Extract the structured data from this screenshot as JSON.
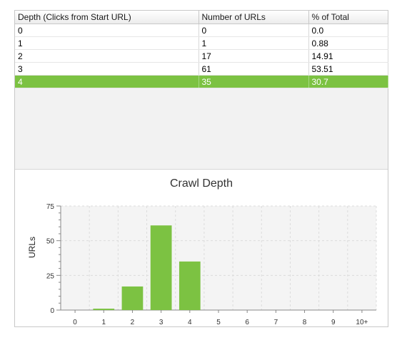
{
  "table": {
    "columns": [
      "Depth (Clicks from Start URL)",
      "Number of URLs",
      "% of Total"
    ],
    "rows": [
      [
        "0",
        "0",
        "0.0"
      ],
      [
        "1",
        "1",
        "0.88"
      ],
      [
        "2",
        "17",
        "14.91"
      ],
      [
        "3",
        "61",
        "53.51"
      ],
      [
        "4",
        "35",
        "30.7"
      ]
    ],
    "selected_row": 4
  },
  "chart_data": {
    "type": "bar",
    "title": "Crawl Depth",
    "ylabel": "URLs",
    "xlabel": "",
    "categories": [
      "0",
      "1",
      "2",
      "3",
      "4",
      "5",
      "6",
      "7",
      "8",
      "9",
      "10+"
    ],
    "values": [
      0,
      1,
      17,
      61,
      35,
      0,
      0,
      0,
      0,
      0,
      0
    ],
    "ylim": [
      0,
      75
    ],
    "yticks": [
      0,
      25,
      50,
      75
    ],
    "grid": true,
    "bar_color": "#7cc242"
  },
  "colors": {
    "selection": "#7cc242",
    "bar": "#7cc242"
  }
}
